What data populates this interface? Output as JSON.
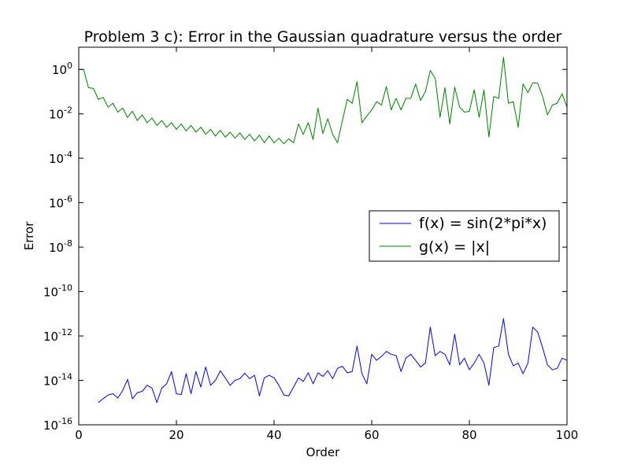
{
  "chart_data": {
    "type": "line",
    "title": "Problem 3 c): Error in the Gaussian quadrature versus the order",
    "xlabel": "Order",
    "ylabel": "Error",
    "xlim": [
      0,
      100
    ],
    "ylim": [
      1e-16,
      10
    ],
    "yscale": "log",
    "xticks": [
      0,
      20,
      40,
      60,
      80,
      100
    ],
    "yticks": [
      {
        "exp": 0,
        "value": 1
      },
      {
        "exp": -2,
        "value": 0.01
      },
      {
        "exp": -4,
        "value": 0.0001
      },
      {
        "exp": -6,
        "value": 1e-06
      },
      {
        "exp": -8,
        "value": 1e-08
      },
      {
        "exp": -10,
        "value": 1e-10
      },
      {
        "exp": -12,
        "value": 1e-12
      },
      {
        "exp": -14,
        "value": 1e-14
      },
      {
        "exp": -16,
        "value": 1e-16
      }
    ],
    "ytick_base": "10",
    "grid": false,
    "legend_position": "center-right",
    "series": [
      {
        "name": "f(x) = sin(2*pi*x)",
        "color": "#0000ff",
        "x": [
          4,
          5,
          6,
          7,
          8,
          9,
          10,
          11,
          12,
          13,
          14,
          15,
          16,
          17,
          18,
          19,
          20,
          21,
          22,
          23,
          24,
          25,
          26,
          27,
          28,
          29,
          30,
          31,
          32,
          33,
          34,
          35,
          36,
          37,
          38,
          39,
          40,
          41,
          42,
          43,
          44,
          45,
          46,
          47,
          48,
          49,
          50,
          51,
          52,
          53,
          54,
          55,
          56,
          57,
          58,
          59,
          60,
          61,
          62,
          63,
          64,
          65,
          66,
          67,
          68,
          69,
          70,
          71,
          72,
          73,
          74,
          75,
          76,
          77,
          78,
          79,
          80,
          81,
          82,
          83,
          84,
          85,
          86,
          87,
          88,
          89,
          90,
          91,
          92,
          93,
          94,
          95,
          96,
          97,
          98,
          99,
          100
        ],
        "y": [
          1e-15,
          1.5e-15,
          2.2e-15,
          2.5e-15,
          1.6e-15,
          3.5e-15,
          1.1e-14,
          1.5e-15,
          2.8e-15,
          3.2e-15,
          6e-15,
          4.5e-15,
          1e-15,
          4.5e-15,
          7e-15,
          2.5e-14,
          2.5e-15,
          2.3e-15,
          2e-14,
          2.5e-15,
          2.5e-14,
          5e-15,
          4e-14,
          6e-15,
          1e-14,
          2.7e-14,
          1.3e-14,
          6e-15,
          1e-14,
          1.2e-14,
          2.1e-14,
          1.2e-14,
          1.7e-14,
          2e-15,
          1.3e-14,
          1.7e-14,
          1.3e-14,
          6e-15,
          2.2e-15,
          2e-15,
          5e-15,
          1.3e-14,
          9e-15,
          2.2e-14,
          7e-15,
          2.2e-14,
          1.5e-14,
          2.7e-14,
          1.2e-14,
          3.5e-14,
          4.3e-14,
          2.2e-14,
          2.5e-14,
          3.5e-13,
          2e-14,
          7e-15,
          1.5e-13,
          8e-14,
          1.2e-13,
          2e-13,
          1.5e-13,
          1.3e-13,
          2.5e-14,
          1e-13,
          1.5e-13,
          8e-14,
          4e-14,
          6e-14,
          2.5e-12,
          1.3e-13,
          2e-13,
          1.5e-13,
          5e-14,
          1.2e-12,
          5e-14,
          1e-13,
          3e-14,
          6e-14,
          1.5e-13,
          6e-14,
          6e-15,
          3e-13,
          3.5e-13,
          6e-12,
          1.5e-13,
          4.5e-14,
          6e-14,
          2e-14,
          6e-14,
          2.5e-12,
          1.5e-12,
          3e-13,
          5e-14,
          3e-14,
          3.5e-14,
          1e-13,
          8e-14
        ]
      },
      {
        "name": "g(x) = |x|",
        "color": "#008000",
        "x": [
          0,
          1,
          2,
          3,
          4,
          5,
          6,
          7,
          8,
          9,
          10,
          11,
          12,
          13,
          14,
          15,
          16,
          17,
          18,
          19,
          20,
          21,
          22,
          23,
          24,
          25,
          26,
          27,
          28,
          29,
          30,
          31,
          32,
          33,
          34,
          35,
          36,
          37,
          38,
          39,
          40,
          41,
          42,
          43,
          44,
          45,
          46,
          47,
          48,
          49,
          50,
          51,
          52,
          53,
          54,
          55,
          56,
          57,
          58,
          59,
          60,
          61,
          62,
          63,
          64,
          65,
          66,
          67,
          68,
          69,
          70,
          71,
          72,
          73,
          74,
          75,
          76,
          77,
          78,
          79,
          80,
          81,
          82,
          83,
          84,
          85,
          86,
          87,
          88,
          89,
          90,
          91,
          92,
          93,
          94,
          95,
          96,
          97,
          98,
          99,
          100
        ],
        "y": [
          1,
          1,
          0.15,
          0.14,
          0.045,
          0.055,
          0.02,
          0.03,
          0.012,
          0.018,
          0.007,
          0.013,
          0.005,
          0.009,
          0.004,
          0.0065,
          0.003,
          0.005,
          0.0025,
          0.004,
          0.002,
          0.0035,
          0.0017,
          0.003,
          0.0015,
          0.0025,
          0.0012,
          0.002,
          0.001,
          0.0018,
          0.0009,
          0.0015,
          0.0008,
          0.0014,
          0.0007,
          0.0012,
          0.0006,
          0.0011,
          0.0005,
          0.001,
          0.0005,
          0.0008,
          0.00045,
          0.00075,
          0.0005,
          0.0035,
          0.0012,
          0.004,
          0.0007,
          0.018,
          0.0013,
          0.006,
          0.0012,
          0.0005,
          0.005,
          0.045,
          0.03,
          0.28,
          0.004,
          0.008,
          0.015,
          0.035,
          0.025,
          0.17,
          0.015,
          0.05,
          0.015,
          0.05,
          0.05,
          0.22,
          0.04,
          0.1,
          0.9,
          0.4,
          0.007,
          0.15,
          0.0035,
          0.16,
          0.02,
          0.012,
          0.013,
          0.12,
          0.007,
          0.12,
          0.0009,
          0.06,
          0.05,
          3.5,
          0.03,
          0.035,
          0.0025,
          0.22,
          0.09,
          0.25,
          0.24,
          0.06,
          0.009,
          0.025,
          0.03,
          0.08,
          0.02
        ]
      }
    ]
  }
}
